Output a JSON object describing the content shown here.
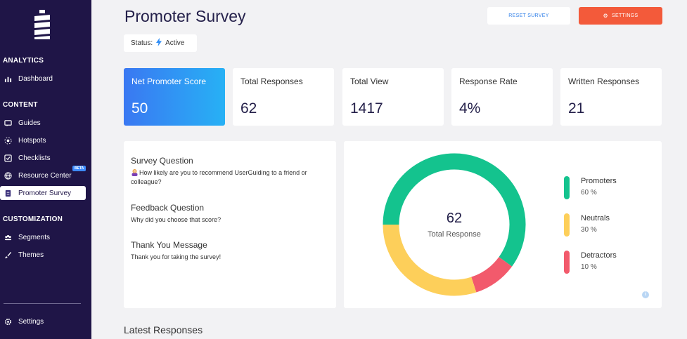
{
  "sidebar": {
    "sections": [
      {
        "title": "ANALYTICS",
        "items": [
          {
            "label": "Dashboard",
            "icon": "bar-chart-icon"
          }
        ]
      },
      {
        "title": "CONTENT",
        "items": [
          {
            "label": "Guides",
            "icon": "guide-icon"
          },
          {
            "label": "Hotspots",
            "icon": "hotspot-icon"
          },
          {
            "label": "Checklists",
            "icon": "checklist-icon"
          },
          {
            "label": "Resource Center",
            "icon": "globe-icon",
            "badge": "BETA"
          },
          {
            "label": "Promoter Survey",
            "icon": "survey-icon",
            "active": true
          }
        ]
      },
      {
        "title": "CUSTOMIZATION",
        "items": [
          {
            "label": "Segments",
            "icon": "segments-icon"
          },
          {
            "label": "Themes",
            "icon": "brush-icon"
          }
        ]
      }
    ],
    "footer": {
      "label": "Settings",
      "icon": "gear-icon"
    }
  },
  "header": {
    "title": "Promoter Survey",
    "status_label": "Status:",
    "status_value": "Active",
    "reset_label": "RESET SURVEY",
    "settings_label": "SETTINGS"
  },
  "stats": [
    {
      "label": "Net Promoter Score",
      "value": "50"
    },
    {
      "label": "Total Responses",
      "value": "62"
    },
    {
      "label": "Total View",
      "value": "1417"
    },
    {
      "label": "Response Rate",
      "value": "4%"
    },
    {
      "label": "Written Responses",
      "value": "21"
    }
  ],
  "questions": {
    "survey_title": "Survey Question",
    "survey_text": "How likely are you to recommend UserGuiding to a friend or colleague?",
    "feedback_title": "Feedback Question",
    "feedback_text": "Why did you choose that score?",
    "thanks_title": "Thank You Message",
    "thanks_text": "Thank you for taking the survey!"
  },
  "chart_data": {
    "type": "pie",
    "center_value": "62",
    "center_label": "Total Response",
    "categories": [
      "Promoters",
      "Neutrals",
      "Detractors"
    ],
    "values": [
      60,
      30,
      10
    ],
    "value_labels": [
      "60 %",
      "30 %",
      "10 %"
    ],
    "colors": [
      "#14c38e",
      "#fdcf5a",
      "#f25a6c"
    ]
  },
  "latest_title": "Latest Responses"
}
